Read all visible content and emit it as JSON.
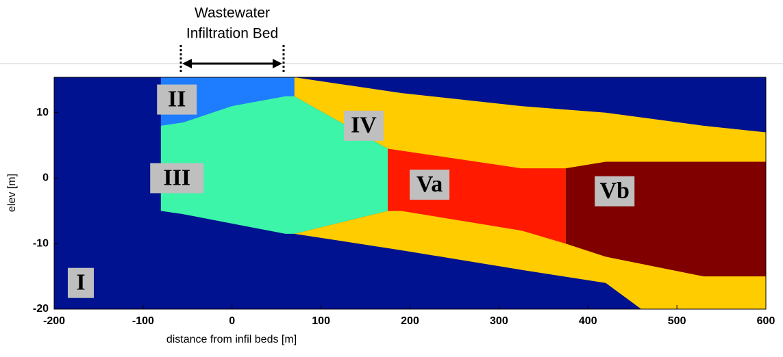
{
  "chart_data": {
    "type": "zone-map",
    "annotation": [
      "Wastewater",
      "Infiltration Bed"
    ],
    "x_label": "distance from infil beds [m]",
    "y_label": "elev [m]",
    "xlim": [
      -200,
      600
    ],
    "ylim": [
      -20,
      15.4
    ],
    "xticks": [
      -200,
      -100,
      0,
      100,
      200,
      300,
      400,
      500,
      600
    ],
    "yticks": [
      -20,
      -10,
      0,
      10
    ],
    "zones": [
      {
        "name": "I",
        "color": "#001290",
        "points": [
          [
            -200,
            15.4
          ],
          [
            600,
            15.4
          ],
          [
            600,
            -20
          ],
          [
            -200,
            -20
          ]
        ],
        "label_at": [
          -170,
          -16
        ]
      },
      {
        "name": "II",
        "color": "#1e7cff",
        "points": [
          [
            -80,
            15.4
          ],
          [
            70,
            15.4
          ],
          [
            70,
            8
          ],
          [
            -80,
            8
          ]
        ],
        "label_at": [
          -62,
          12
        ]
      },
      {
        "name": "III",
        "color": "#3cf5a8",
        "points": [
          [
            -80,
            8
          ],
          [
            -55,
            8.5
          ],
          [
            0,
            11
          ],
          [
            60,
            12.5
          ],
          [
            70,
            12.5
          ],
          [
            175,
            4.5
          ],
          [
            175,
            -5
          ],
          [
            70,
            -8.5
          ],
          [
            60,
            -8.5
          ],
          [
            -55,
            -5.5
          ],
          [
            -80,
            -5
          ]
        ],
        "label_at": [
          -62,
          0
        ]
      },
      {
        "name": "IV",
        "color": "#ffcc00",
        "points": [
          [
            70,
            15.4
          ],
          [
            190,
            13
          ],
          [
            325,
            11
          ],
          [
            420,
            10
          ],
          [
            530,
            8
          ],
          [
            600,
            7
          ],
          [
            600,
            -20
          ],
          [
            460,
            -20
          ],
          [
            420,
            -16
          ],
          [
            325,
            -14
          ],
          [
            190,
            -11
          ],
          [
            70,
            -8.5
          ],
          [
            175,
            -5
          ],
          [
            175,
            4.5
          ],
          [
            70,
            12.5
          ]
        ],
        "label_at": [
          148,
          8
        ]
      },
      {
        "name": "Va",
        "color": "#ff1a00",
        "points": [
          [
            175,
            4.5
          ],
          [
            325,
            1.5
          ],
          [
            375,
            1.5
          ],
          [
            375,
            -10
          ],
          [
            325,
            -8
          ],
          [
            190,
            -5
          ],
          [
            175,
            -5
          ]
        ],
        "label_at": [
          222,
          -1
        ]
      },
      {
        "name": "Vb",
        "color": "#800000",
        "points": [
          [
            375,
            1.5
          ],
          [
            420,
            2.5
          ],
          [
            600,
            2.5
          ],
          [
            600,
            -15
          ],
          [
            530,
            -15
          ],
          [
            420,
            -12
          ],
          [
            375,
            -10
          ]
        ],
        "label_at": [
          430,
          -2
        ]
      }
    ]
  }
}
